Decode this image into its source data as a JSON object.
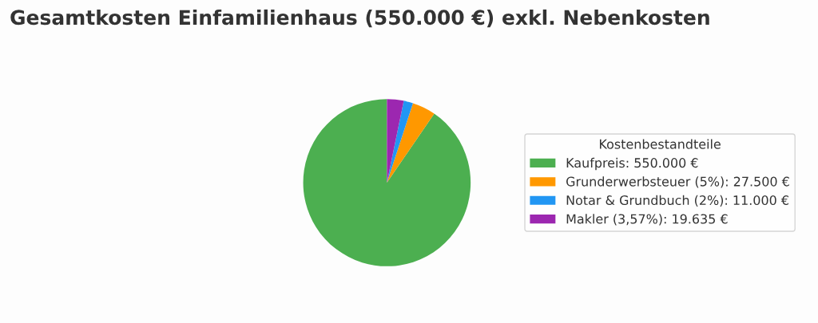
{
  "chart_data": {
    "type": "pie",
    "title": "Gesamtkosten Einfamilienhaus (550.000 €) exkl. Nebenkosten",
    "legend_title": "Kostenbestandteile",
    "categories": [
      "Kaufpreis: 550.000 €",
      "Grunderwerbsteuer (5%): 27.500 €",
      "Notar & Grundbuch (2%): 11.000 €",
      "Makler (3,57%): 19.635 €"
    ],
    "values": [
      550000,
      27500,
      11000,
      19635
    ],
    "colors": [
      "#4caf50",
      "#ff9800",
      "#2196f3",
      "#9c27b0"
    ],
    "legend": "right"
  }
}
